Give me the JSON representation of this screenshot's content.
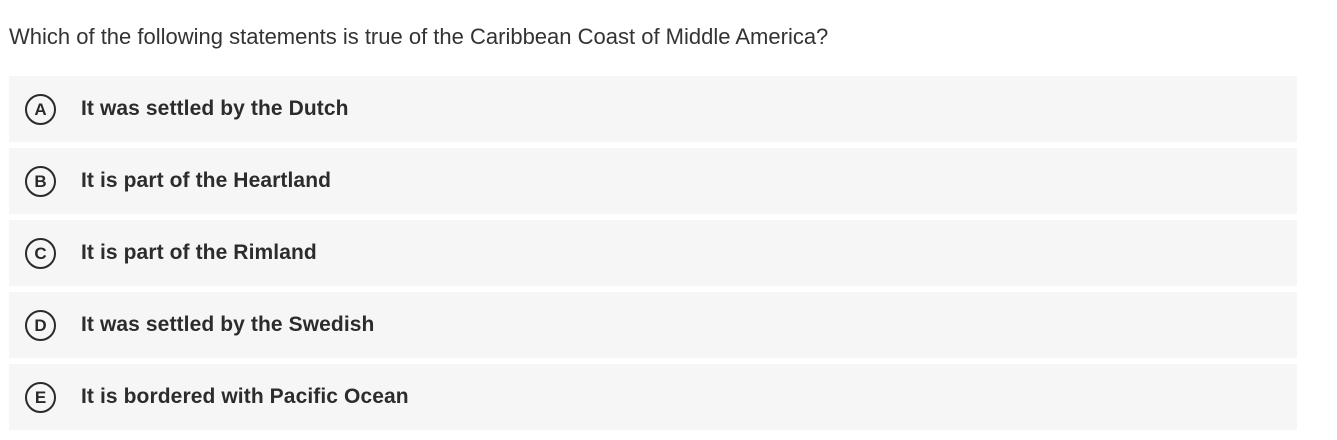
{
  "question": {
    "text": "Which of the following statements is true of the Caribbean Coast of Middle America?"
  },
  "options": [
    {
      "letter": "A",
      "text": "It was settled by the Dutch"
    },
    {
      "letter": "B",
      "text": "It is part of the Heartland"
    },
    {
      "letter": "C",
      "text": "It is part of the Rimland"
    },
    {
      "letter": "D",
      "text": "It was settled by the Swedish"
    },
    {
      "letter": "E",
      "text": "It is bordered with Pacific Ocean"
    }
  ]
}
